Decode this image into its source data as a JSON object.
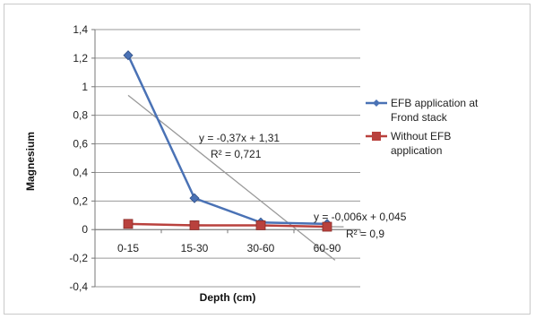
{
  "chart_data": {
    "type": "line",
    "categories": [
      "0-15",
      "15-30",
      "30-60",
      "60-90"
    ],
    "series": [
      {
        "name": "EFB application at Frond stack",
        "values": [
          1.22,
          0.22,
          0.05,
          0.04
        ],
        "color": "#4a72b5",
        "marker": "diamond",
        "trendline": {
          "slope": -0.37,
          "intercept": 1.31,
          "equation": "y = -0,37x + 1,31",
          "r2": "R² = 0,721"
        }
      },
      {
        "name": "Without EFB application",
        "values": [
          0.04,
          0.03,
          0.03,
          0.02
        ],
        "color": "#b9413d",
        "marker": "square",
        "trendline": {
          "slope": -0.006,
          "intercept": 0.045,
          "equation": "y = -0,006x + 0,045",
          "r2": "R² = 0,9"
        }
      }
    ],
    "xlabel": "Depth (cm)",
    "ylabel": "Magnesium",
    "ylim": [
      -0.4,
      1.4
    ],
    "yticks": [
      "-0,4",
      "-0,2",
      "0",
      "0,2",
      "0,4",
      "0,6",
      "0,8",
      "1",
      "1,2",
      "1,4"
    ],
    "grid": true,
    "legend_position": "right"
  }
}
